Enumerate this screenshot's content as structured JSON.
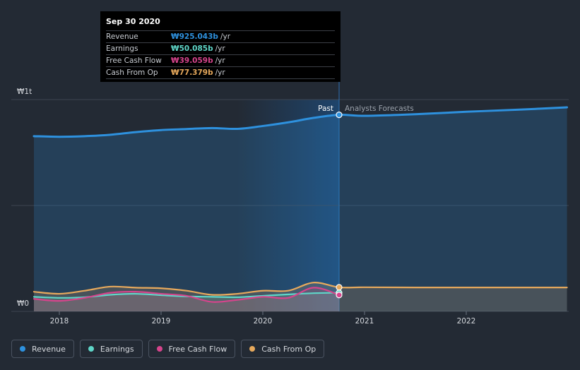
{
  "chart_data": {
    "type": "line",
    "currency_symbol": "₩",
    "y_tick_labels": [
      "₩0",
      "₩1t"
    ],
    "ylim": [
      0,
      1000
    ],
    "y_unit": "billions KRW",
    "x_tick_labels": [
      "2018",
      "2019",
      "2020",
      "2021",
      "2022"
    ],
    "xlim": [
      2017.75,
      2022.99
    ],
    "divider_x": 2020.75,
    "past_label": "Past",
    "forecast_label": "Analysts Forecasts",
    "series": [
      {
        "name": "Revenue",
        "color": "#2e91de",
        "x": [
          2017.75,
          2018.0,
          2018.25,
          2018.5,
          2018.75,
          2019.0,
          2019.25,
          2019.5,
          2019.75,
          2020.0,
          2020.25,
          2020.5,
          2020.75,
          2021.0,
          2021.5,
          2022.0,
          2022.5,
          2022.99
        ],
        "values": [
          820,
          817,
          820,
          827,
          840,
          850,
          855,
          860,
          856,
          870,
          888,
          910,
          925,
          920,
          928,
          940,
          950,
          962
        ]
      },
      {
        "name": "Earnings",
        "color": "#5fd6c8",
        "x": [
          2017.75,
          2018.0,
          2018.25,
          2018.5,
          2018.75,
          2019.0,
          2019.25,
          2019.5,
          2019.75,
          2020.0,
          2020.25,
          2020.5,
          2020.75
        ],
        "values": [
          30,
          25,
          28,
          40,
          45,
          38,
          32,
          30,
          28,
          35,
          42,
          48,
          50
        ]
      },
      {
        "name": "Free Cash Flow",
        "color": "#d6448c",
        "x": [
          2017.75,
          2018.0,
          2018.25,
          2018.5,
          2018.75,
          2019.0,
          2019.25,
          2019.5,
          2019.75,
          2020.0,
          2020.25,
          2020.5,
          2020.75
        ],
        "values": [
          20,
          10,
          25,
          50,
          55,
          45,
          35,
          5,
          15,
          30,
          25,
          75,
          39
        ]
      },
      {
        "name": "Cash From Op",
        "color": "#e7a95c",
        "x": [
          2017.75,
          2018.0,
          2018.25,
          2018.5,
          2018.75,
          2019.0,
          2019.25,
          2019.5,
          2019.75,
          2020.0,
          2020.25,
          2020.5,
          2020.75,
          2021.0,
          2021.5,
          2022.0,
          2022.5,
          2022.99
        ],
        "values": [
          55,
          45,
          60,
          80,
          75,
          72,
          60,
          40,
          45,
          60,
          60,
          100,
          77,
          77,
          76,
          76,
          76,
          76
        ]
      }
    ],
    "highlight_x": 2020.75
  },
  "tooltip": {
    "date": "Sep 30 2020",
    "rows": [
      {
        "name": "Revenue",
        "value": "₩925.043b",
        "unit": "/yr",
        "color": "#2e91de"
      },
      {
        "name": "Earnings",
        "value": "₩50.085b",
        "unit": "/yr",
        "color": "#5fd6c8"
      },
      {
        "name": "Free Cash Flow",
        "value": "₩39.059b",
        "unit": "/yr",
        "color": "#d6448c"
      },
      {
        "name": "Cash From Op",
        "value": "₩77.379b",
        "unit": "/yr",
        "color": "#e7a95c"
      }
    ]
  },
  "legend": [
    {
      "label": "Revenue",
      "color": "#2e91de"
    },
    {
      "label": "Earnings",
      "color": "#5fd6c8"
    },
    {
      "label": "Free Cash Flow",
      "color": "#d6448c"
    },
    {
      "label": "Cash From Op",
      "color": "#e7a95c"
    }
  ]
}
